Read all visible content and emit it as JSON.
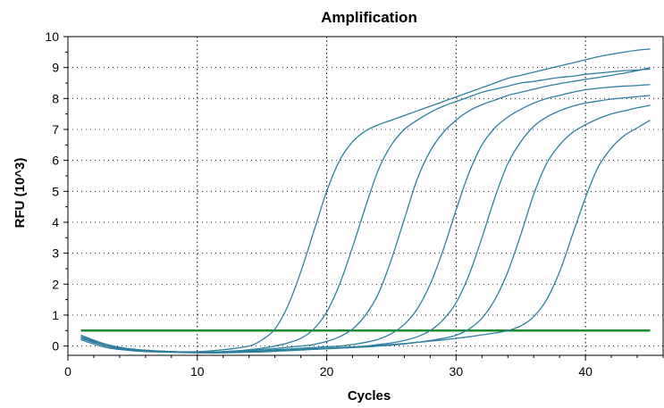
{
  "chart_data": {
    "type": "line",
    "title": "Amplification",
    "xlabel": "Cycles",
    "ylabel": "RFU (10^3)",
    "xlim": [
      0,
      46
    ],
    "ylim": [
      -0.3,
      10
    ],
    "x_ticks": [
      0,
      10,
      20,
      30,
      40
    ],
    "y_ticks": [
      0,
      1,
      2,
      3,
      4,
      5,
      6,
      7,
      8,
      9,
      10
    ],
    "grid": true,
    "legend": "none",
    "curve_color": "#2e7f9f",
    "threshold_color": "#1a8a2a",
    "threshold": {
      "value": 0.5,
      "x_range": [
        1,
        45
      ]
    },
    "x": [
      1,
      3,
      5,
      8,
      10,
      12,
      14,
      15,
      16,
      17,
      18,
      19,
      20,
      21,
      22,
      23,
      24,
      25,
      26,
      27,
      28,
      29,
      30,
      31,
      32,
      33,
      34,
      35,
      36,
      37,
      38,
      39,
      40,
      41,
      42,
      43,
      44,
      45
    ],
    "series": [
      {
        "values": [
          0.3,
          0.05,
          -0.12,
          -0.18,
          -0.18,
          -0.12,
          0.0,
          0.2,
          0.55,
          1.3,
          2.4,
          3.7,
          5.0,
          6.0,
          6.6,
          6.95,
          7.15,
          7.3,
          7.45,
          7.6,
          7.75,
          7.9,
          8.05,
          8.2,
          8.35,
          8.5,
          8.65,
          8.75,
          8.85,
          8.95,
          9.05,
          9.15,
          9.25,
          9.35,
          9.43,
          9.5,
          9.56,
          9.6
        ]
      },
      {
        "values": [
          0.3,
          0.0,
          -0.15,
          -0.2,
          -0.2,
          -0.18,
          -0.12,
          -0.07,
          0.0,
          0.1,
          0.25,
          0.55,
          1.1,
          2.0,
          3.2,
          4.5,
          5.7,
          6.5,
          7.0,
          7.3,
          7.55,
          7.75,
          7.9,
          8.05,
          8.2,
          8.3,
          8.4,
          8.5,
          8.55,
          8.62,
          8.68,
          8.72,
          8.78,
          8.82,
          8.86,
          8.9,
          8.92,
          8.95
        ]
      },
      {
        "values": [
          0.35,
          0.05,
          -0.1,
          -0.18,
          -0.2,
          -0.18,
          -0.14,
          -0.11,
          -0.08,
          -0.04,
          0.0,
          0.05,
          0.15,
          0.3,
          0.55,
          1.0,
          1.7,
          2.8,
          4.1,
          5.4,
          6.3,
          6.9,
          7.3,
          7.6,
          7.8,
          7.95,
          8.1,
          8.2,
          8.3,
          8.4,
          8.48,
          8.55,
          8.62,
          8.68,
          8.75,
          8.82,
          8.9,
          9.0
        ]
      },
      {
        "values": [
          0.3,
          0.0,
          -0.12,
          -0.18,
          -0.2,
          -0.2,
          -0.17,
          -0.15,
          -0.12,
          -0.1,
          -0.07,
          -0.05,
          -0.02,
          0.0,
          0.05,
          0.12,
          0.22,
          0.4,
          0.7,
          1.2,
          2.0,
          3.1,
          4.4,
          5.6,
          6.5,
          7.05,
          7.4,
          7.65,
          7.85,
          8.0,
          8.1,
          8.2,
          8.28,
          8.33,
          8.37,
          8.4,
          8.42,
          8.45
        ]
      },
      {
        "values": [
          0.25,
          0.0,
          -0.12,
          -0.18,
          -0.2,
          -0.2,
          -0.18,
          -0.17,
          -0.15,
          -0.13,
          -0.11,
          -0.09,
          -0.07,
          -0.05,
          -0.03,
          0.0,
          0.05,
          0.1,
          0.18,
          0.3,
          0.5,
          0.85,
          1.4,
          2.3,
          3.5,
          4.8,
          5.9,
          6.6,
          7.1,
          7.4,
          7.6,
          7.75,
          7.85,
          7.92,
          7.98,
          8.02,
          8.06,
          8.1
        ]
      },
      {
        "values": [
          0.2,
          -0.05,
          -0.15,
          -0.2,
          -0.22,
          -0.22,
          -0.2,
          -0.19,
          -0.17,
          -0.15,
          -0.13,
          -0.11,
          -0.09,
          -0.07,
          -0.05,
          -0.03,
          0.0,
          0.03,
          0.07,
          0.12,
          0.18,
          0.25,
          0.35,
          0.55,
          0.9,
          1.5,
          2.4,
          3.6,
          4.9,
          5.9,
          6.5,
          6.9,
          7.15,
          7.35,
          7.5,
          7.6,
          7.7,
          7.78
        ]
      },
      {
        "values": [
          0.25,
          0.0,
          -0.12,
          -0.18,
          -0.2,
          -0.2,
          -0.18,
          -0.17,
          -0.15,
          -0.13,
          -0.11,
          -0.09,
          -0.07,
          -0.05,
          -0.03,
          -0.01,
          0.02,
          0.05,
          0.08,
          0.12,
          0.16,
          0.2,
          0.25,
          0.3,
          0.36,
          0.42,
          0.5,
          0.65,
          0.95,
          1.5,
          2.4,
          3.6,
          4.8,
          5.8,
          6.4,
          6.8,
          7.05,
          7.3
        ]
      }
    ]
  }
}
